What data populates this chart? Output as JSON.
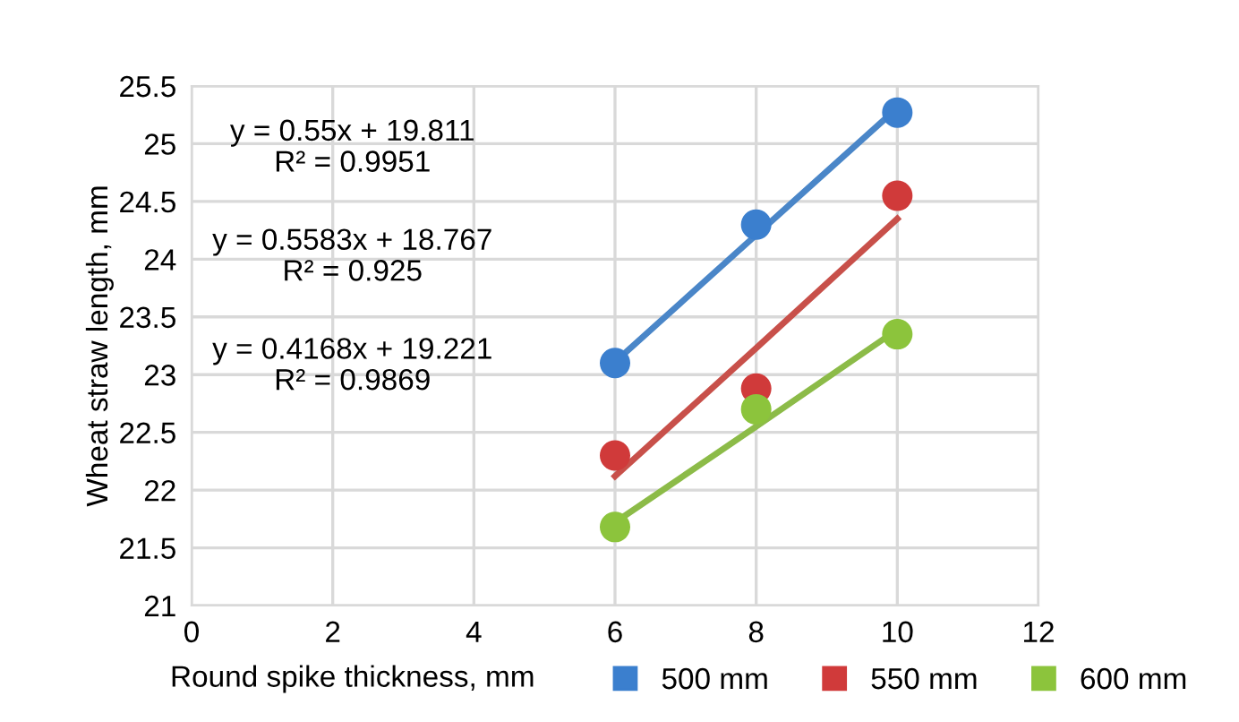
{
  "chart_data": {
    "type": "scatter",
    "xlabel": "Round spike thickness, mm",
    "ylabel": "Wheat straw length, mm",
    "x": [
      6,
      8,
      10
    ],
    "series": [
      {
        "name": "500 mm",
        "color": "#3b7fce",
        "values": [
          23.1,
          24.3,
          25.27
        ]
      },
      {
        "name": "550 mm",
        "color": "#d03a3a",
        "values": [
          22.3,
          22.88,
          24.55
        ]
      },
      {
        "name": "600 mm",
        "color": "#8cc43c",
        "values": [
          21.68,
          22.7,
          23.35
        ]
      },
      {
        "type": "line",
        "color": "#4a86c8",
        "marker": "none",
        "values": [
          23.11,
          24.21,
          25.31
        ]
      },
      {
        "type": "line",
        "color": "#c8504a",
        "marker": "none",
        "values": [
          22.12,
          23.23,
          24.35
        ]
      },
      {
        "type": "line",
        "color": "#8cbb48",
        "marker": "none",
        "values": [
          21.72,
          22.55,
          23.39
        ]
      }
    ],
    "annotations": [
      "y = 0.55x + 19.811\nR² = 0.9951",
      "y = 0.5583x + 18.767\nR² = 0.925",
      "y = 0.4168x + 19.221\nR² = 0.9869"
    ],
    "xlim": [
      0,
      12
    ],
    "xticks": [
      0,
      2,
      4,
      6,
      8,
      10,
      12
    ],
    "ylim": [
      21,
      25.5
    ],
    "yticks": [
      21,
      21.5,
      22,
      22.5,
      23,
      23.5,
      24,
      24.5,
      25,
      25.5
    ],
    "grid": true,
    "legend": "bottom right",
    "marker": "circle"
  }
}
